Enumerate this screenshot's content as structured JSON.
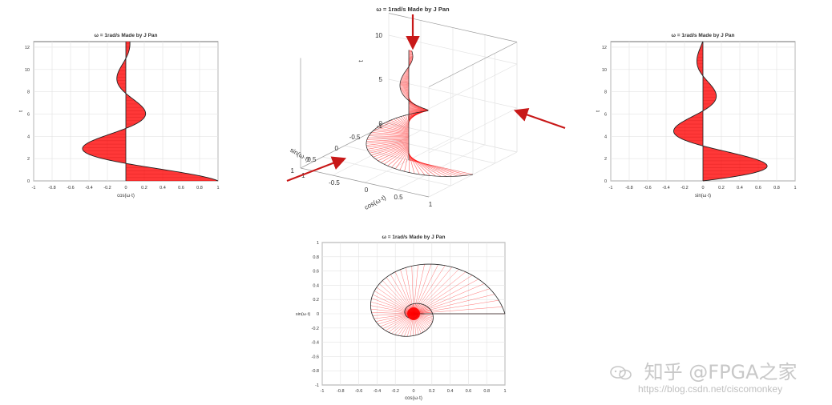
{
  "colors": {
    "fill": "#ff0000",
    "edge": "#222222",
    "grid": "#e3e3e3",
    "axis": "#333333",
    "arrow": "#c81818"
  },
  "chart_data": [
    {
      "id": "left",
      "type": "area",
      "title": "ω = 1rad/s   Made by J Pan",
      "xlabel": "cos(ω·t)",
      "ylabel": "t",
      "xlim": [
        -1,
        1
      ],
      "ylim": [
        0,
        12.5
      ],
      "xticks": [
        "-1",
        "-0.8",
        "-0.6",
        "-0.4",
        "-0.2",
        "0",
        "0.2",
        "0.4",
        "0.6",
        "0.8",
        "1"
      ],
      "yticks": [
        "0",
        "2",
        "4",
        "6",
        "8",
        "10",
        "12"
      ],
      "function": "cos",
      "decay": 0.25,
      "t_max": 12.5,
      "grid": true
    },
    {
      "id": "center3d",
      "type": "line",
      "title": "ω = 1rad/s   Made by J Pan",
      "xlabel": "cos(ω·t)",
      "ylabel": "sin(ω·t)",
      "zlabel": "t",
      "xticks": [
        "-1",
        "-0.5",
        "0",
        "0.5",
        "1"
      ],
      "yticks": [
        "-1",
        "-0.5",
        "0",
        "0.5",
        "1"
      ],
      "zticks": [
        "0",
        "5",
        "10"
      ],
      "zlim": [
        0,
        12.5
      ],
      "decay": 0.25,
      "grid": true
    },
    {
      "id": "right",
      "type": "area",
      "title": "ω = 1rad/s   Made by J Pan",
      "xlabel": "sin(ω·t)",
      "ylabel": "t",
      "xlim": [
        -1,
        1
      ],
      "ylim": [
        0,
        12.5
      ],
      "xticks": [
        "-1",
        "-0.8",
        "-0.6",
        "-0.4",
        "-0.2",
        "0",
        "0.2",
        "0.4",
        "0.6",
        "0.8",
        "1"
      ],
      "yticks": [
        "0",
        "2",
        "4",
        "6",
        "8",
        "10",
        "12"
      ],
      "function": "sin",
      "decay": 0.25,
      "t_max": 12.5,
      "grid": true
    },
    {
      "id": "bottom",
      "type": "line",
      "title": "ω = 1rad/s   Made by J Pan",
      "xlabel": "cos(ω·t)",
      "ylabel": "sin(ω·t)",
      "xlim": [
        -1,
        1
      ],
      "ylim": [
        -1,
        1
      ],
      "xticks": [
        "-1",
        "-0.8",
        "-0.6",
        "-0.4",
        "-0.2",
        "0",
        "0.2",
        "0.4",
        "0.6",
        "0.8",
        "1"
      ],
      "yticks": [
        "-1",
        "-0.8",
        "-0.6",
        "-0.4",
        "-0.2",
        "0",
        "0.2",
        "0.4",
        "0.6",
        "0.8",
        "1"
      ],
      "decay": 0.25,
      "grid": true
    }
  ],
  "watermark": {
    "brand": "知乎 @FPGA之家",
    "url": "https://blog.csdn.net/ciscomonkey"
  }
}
